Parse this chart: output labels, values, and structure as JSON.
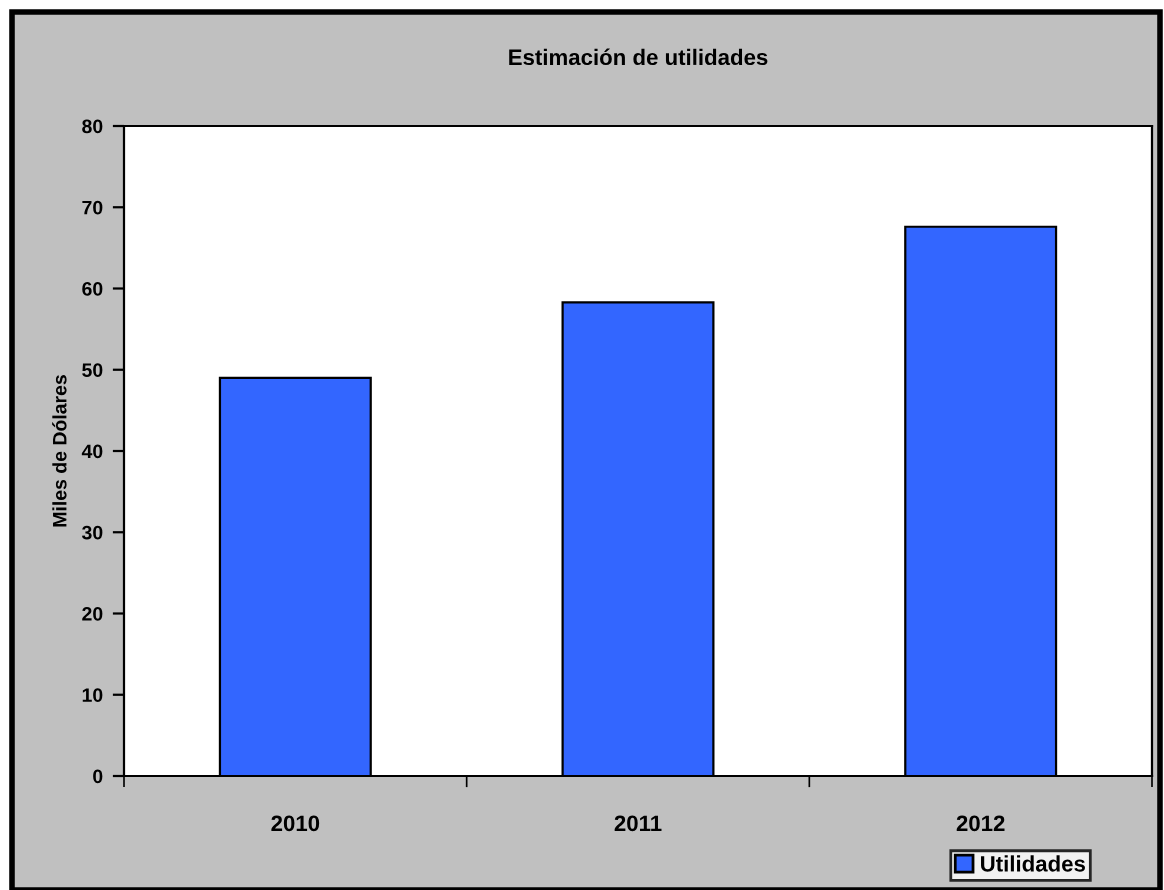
{
  "chart_data": {
    "type": "bar",
    "title": "Estimación de utilidades",
    "ylabel": "Miles de Dólares",
    "categories": [
      "2010",
      "2011",
      "2012"
    ],
    "series": [
      {
        "name": "Utilidades",
        "color": "#3366ff",
        "values": [
          49.0,
          58.3,
          67.6
        ]
      }
    ],
    "ylim": [
      0,
      80
    ],
    "yticks": [
      0,
      10,
      20,
      30,
      40,
      50,
      60,
      70,
      80
    ],
    "grid": false,
    "legend": "bottom right"
  }
}
